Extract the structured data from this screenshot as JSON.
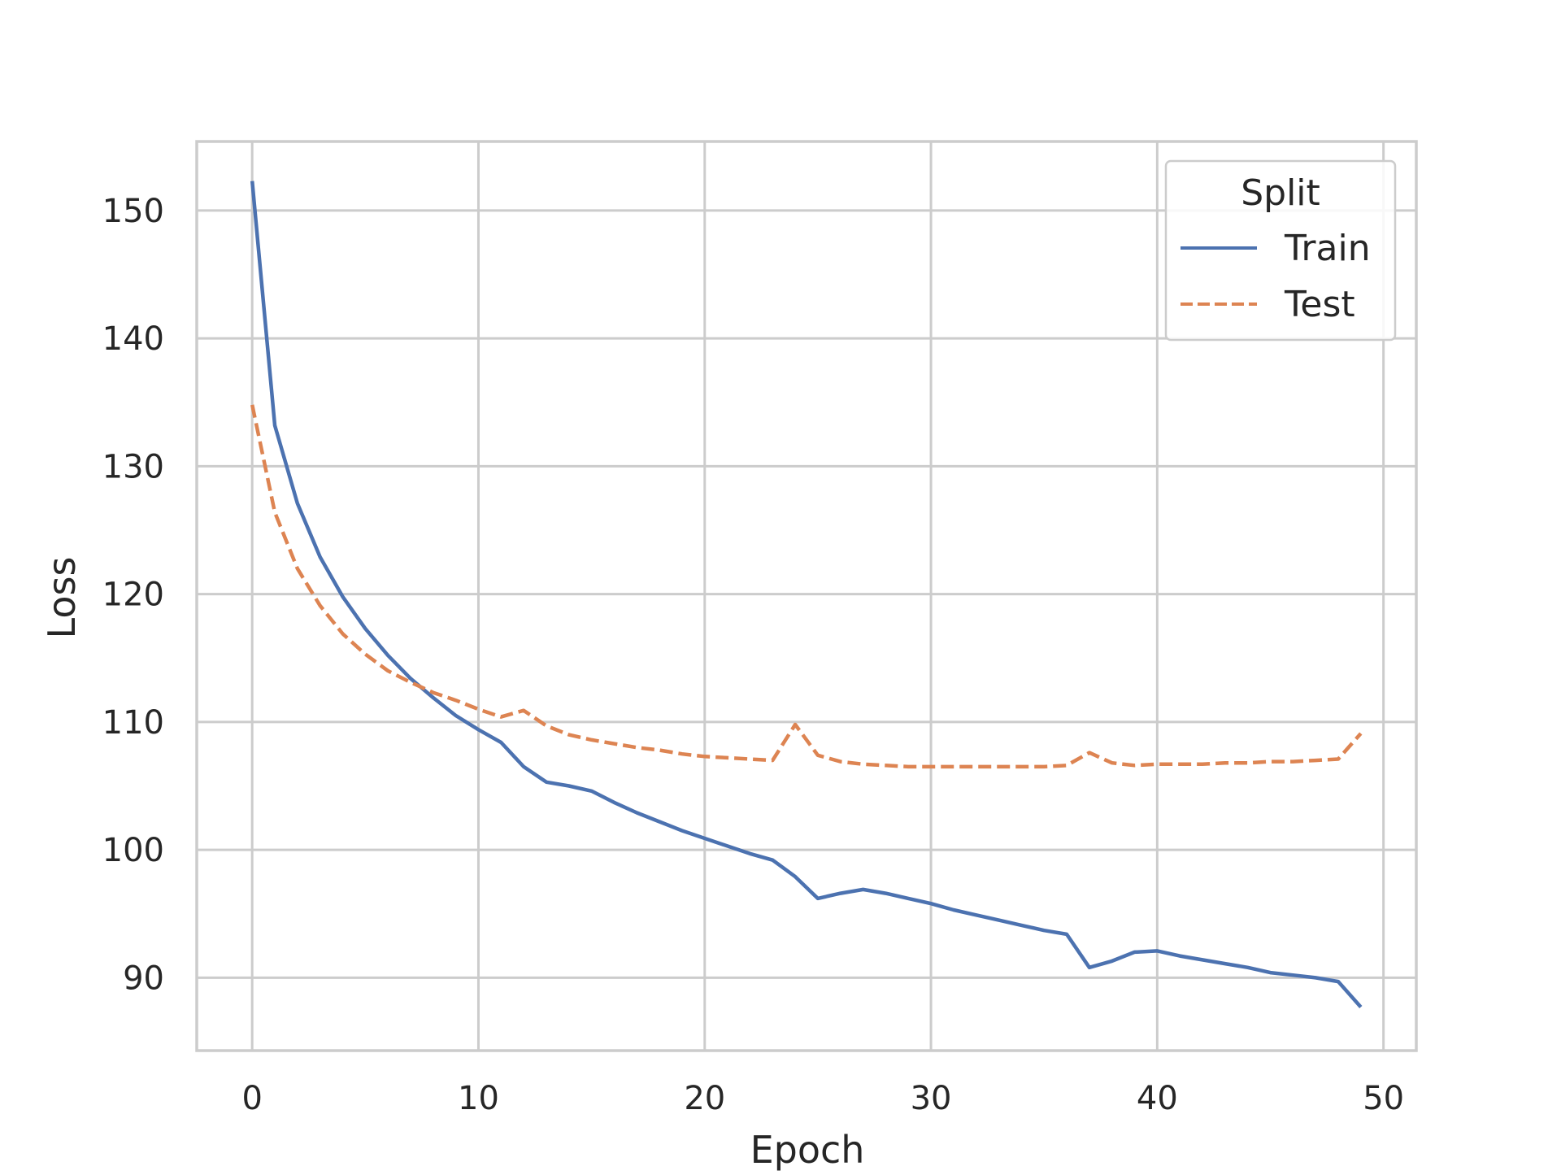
{
  "chart_data": {
    "type": "line",
    "title": "",
    "xlabel": "Epoch",
    "ylabel": "Loss",
    "xlim": [
      -2.45,
      51.45
    ],
    "ylim": [
      84.3,
      155.4
    ],
    "xticks": [
      0,
      10,
      20,
      30,
      40,
      50
    ],
    "yticks": [
      90,
      100,
      110,
      120,
      130,
      140,
      150
    ],
    "grid": true,
    "legend": {
      "title": "Split",
      "position": "top-right"
    },
    "x": [
      0,
      1,
      2,
      3,
      4,
      5,
      6,
      7,
      8,
      9,
      10,
      11,
      12,
      13,
      14,
      15,
      16,
      17,
      18,
      19,
      20,
      21,
      22,
      23,
      24,
      25,
      26,
      27,
      28,
      29,
      30,
      31,
      32,
      33,
      34,
      35,
      36,
      37,
      38,
      39,
      40,
      41,
      42,
      43,
      44,
      45,
      46,
      47,
      48,
      49
    ],
    "series": [
      {
        "name": "Train",
        "style": "solid",
        "color": "#4C72B0",
        "values": [
          152.3,
          133.2,
          127.1,
          122.9,
          119.8,
          117.3,
          115.2,
          113.4,
          111.9,
          110.5,
          109.4,
          108.4,
          106.5,
          105.3,
          105.0,
          104.6,
          103.7,
          102.9,
          102.2,
          101.5,
          100.9,
          100.3,
          99.7,
          99.2,
          97.9,
          96.2,
          96.6,
          96.9,
          96.6,
          96.2,
          95.8,
          95.3,
          94.9,
          94.5,
          94.1,
          93.7,
          93.4,
          90.8,
          91.3,
          92.0,
          92.1,
          91.7,
          91.4,
          91.1,
          90.8,
          90.4,
          90.2,
          90.0,
          89.7,
          87.7
        ]
      },
      {
        "name": "Test",
        "style": "dashed",
        "color": "#DD8452",
        "values": [
          134.8,
          126.4,
          122.0,
          119.1,
          116.9,
          115.3,
          114.0,
          113.1,
          112.3,
          111.7,
          111.0,
          110.4,
          110.9,
          109.7,
          109.0,
          108.6,
          108.3,
          108.0,
          107.8,
          107.5,
          107.3,
          107.2,
          107.1,
          107.0,
          109.8,
          107.4,
          106.9,
          106.7,
          106.6,
          106.5,
          106.5,
          106.5,
          106.5,
          106.5,
          106.5,
          106.5,
          106.6,
          107.6,
          106.8,
          106.6,
          106.7,
          106.7,
          106.7,
          106.8,
          106.8,
          106.9,
          106.9,
          107.0,
          107.1,
          109.1
        ]
      }
    ]
  }
}
